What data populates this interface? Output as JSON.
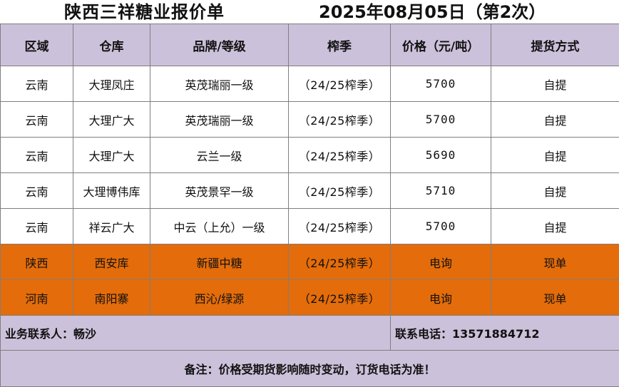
{
  "title": {
    "main": "陕西三祥糖业报价单",
    "date": "2025年08月05日（第2次）"
  },
  "headers": [
    "区域",
    "仓库",
    "品牌/等级",
    "榨季",
    "价格（元/吨）",
    "提货方式"
  ],
  "rows": [
    {
      "region": "云南",
      "warehouse": "大理凤庄",
      "brand": "英茂瑞丽一级",
      "season": "（24/25榨季）",
      "price": "5700",
      "delivery": "自提",
      "highlight": false
    },
    {
      "region": "云南",
      "warehouse": "大理广大",
      "brand": "英茂瑞丽一级",
      "season": "（24/25榨季）",
      "price": "5700",
      "delivery": "自提",
      "highlight": false
    },
    {
      "region": "云南",
      "warehouse": "大理广大",
      "brand": "云兰一级",
      "season": "（24/25榨季）",
      "price": "5690",
      "delivery": "自提",
      "highlight": false
    },
    {
      "region": "云南",
      "warehouse": "大理博伟库",
      "brand": "英茂景罕一级",
      "season": "（24/25榨季）",
      "price": "5710",
      "delivery": "自提",
      "highlight": false
    },
    {
      "region": "云南",
      "warehouse": "祥云广大",
      "brand": "中云（上允）一级",
      "season": "（24/25榨季）",
      "price": "5700",
      "delivery": "自提",
      "highlight": false
    },
    {
      "region": "陕西",
      "warehouse": "西安库",
      "brand": "新疆中糖",
      "season": "（24/25榨季）",
      "price": "电询",
      "delivery": "现单",
      "highlight": true
    },
    {
      "region": "河南",
      "warehouse": "南阳寨",
      "brand": "西沁/绿源",
      "season": "（24/25榨季）",
      "price": "电询",
      "delivery": "现单",
      "highlight": true
    }
  ],
  "contact": {
    "person": "业务联系人：畅沙",
    "phone": "联系电话：13571884712"
  },
  "note": "备注：价格受期货影响随时变动，订货电话为准！",
  "colors": {
    "header_bg": "#ccc1da",
    "highlight_bg": "#e46c0a",
    "grid_line": "#7f7f7f"
  }
}
